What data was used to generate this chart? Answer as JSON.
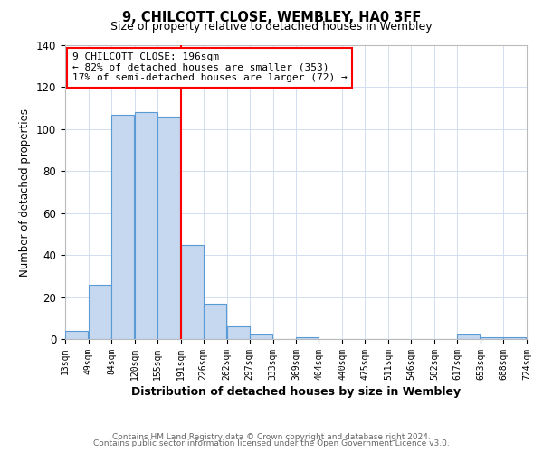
{
  "title": "9, CHILCOTT CLOSE, WEMBLEY, HA0 3FF",
  "subtitle": "Size of property relative to detached houses in Wembley",
  "xlabel": "Distribution of detached houses by size in Wembley",
  "ylabel": "Number of detached properties",
  "bar_left_edges": [
    13,
    49,
    84,
    120,
    155,
    191,
    226,
    262,
    297,
    333,
    369,
    404,
    440,
    475,
    511,
    546,
    582,
    617,
    653,
    688
  ],
  "bar_heights": [
    4,
    26,
    107,
    108,
    106,
    45,
    17,
    6,
    2,
    0,
    1,
    0,
    0,
    0,
    0,
    0,
    0,
    2,
    1,
    1
  ],
  "bin_width": 35,
  "tick_labels": [
    "13sqm",
    "49sqm",
    "84sqm",
    "120sqm",
    "155sqm",
    "191sqm",
    "226sqm",
    "262sqm",
    "297sqm",
    "333sqm",
    "369sqm",
    "404sqm",
    "440sqm",
    "475sqm",
    "511sqm",
    "546sqm",
    "582sqm",
    "617sqm",
    "653sqm",
    "688sqm",
    "724sqm"
  ],
  "tick_positions": [
    13,
    49,
    84,
    120,
    155,
    191,
    226,
    262,
    297,
    333,
    369,
    404,
    440,
    475,
    511,
    546,
    582,
    617,
    653,
    688,
    724
  ],
  "bar_color": "#c5d8f0",
  "bar_edge_color": "#5b9bd5",
  "vline_x": 191,
  "vline_color": "red",
  "ylim": [
    0,
    140
  ],
  "yticks": [
    0,
    20,
    40,
    60,
    80,
    100,
    120,
    140
  ],
  "xlim_left": 13,
  "xlim_right": 724,
  "annotation_text": "9 CHILCOTT CLOSE: 196sqm\n← 82% of detached houses are smaller (353)\n17% of semi-detached houses are larger (72) →",
  "annotation_box_color": "#ffffff",
  "annotation_box_edge_color": "red",
  "footer1": "Contains HM Land Registry data © Crown copyright and database right 2024.",
  "footer2": "Contains public sector information licensed under the Open Government Licence v3.0.",
  "background_color": "#ffffff",
  "plot_bg_color": "#ffffff",
  "grid_color": "#d0dff0"
}
